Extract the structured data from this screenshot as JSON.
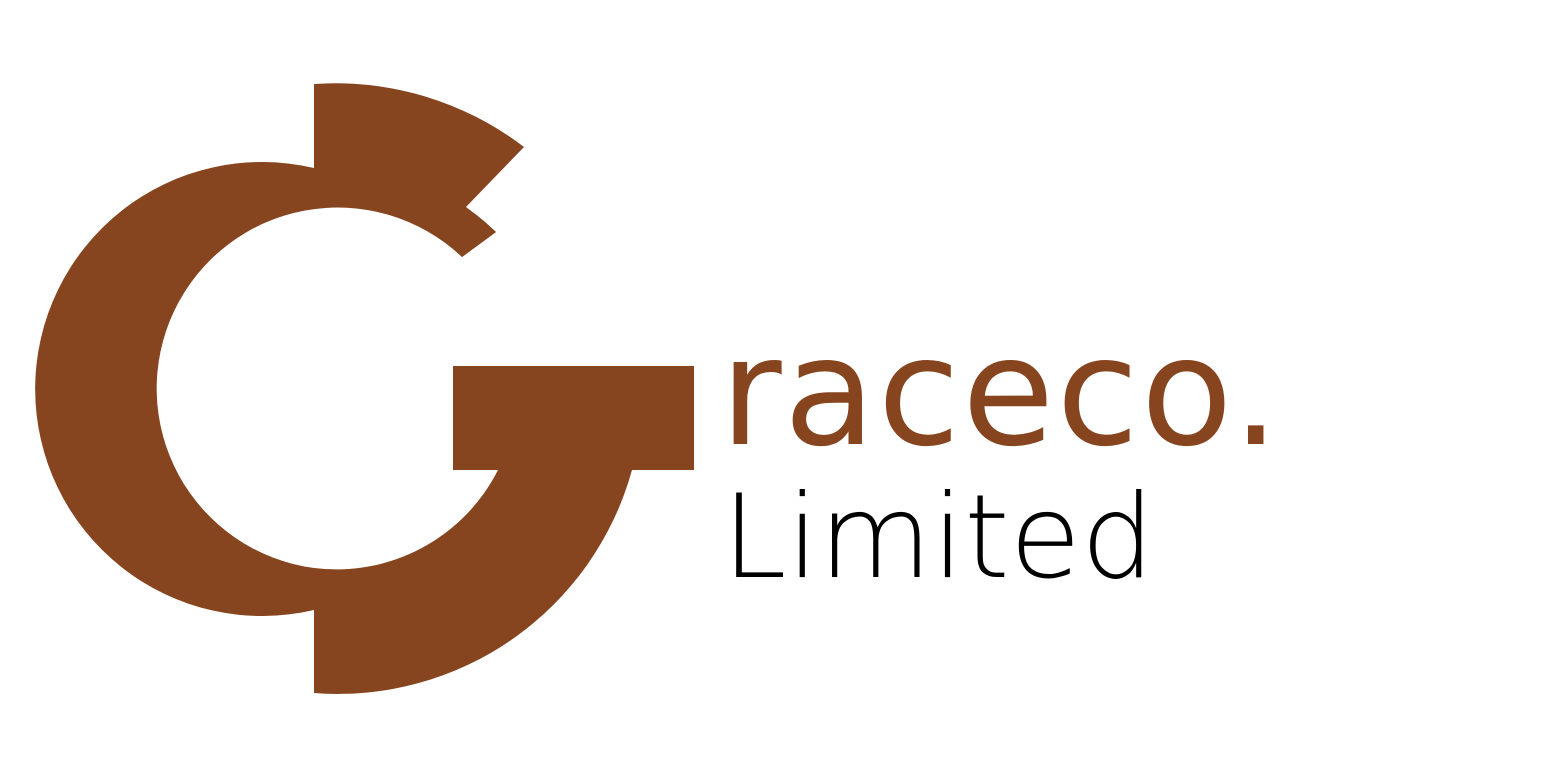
{
  "logo": {
    "brand_name": "raceco.",
    "sub_name": "Limited",
    "mark_letter": "G",
    "colors": {
      "brand": "#87451f",
      "text_dark": "#000000",
      "background": "#ffffff"
    }
  }
}
